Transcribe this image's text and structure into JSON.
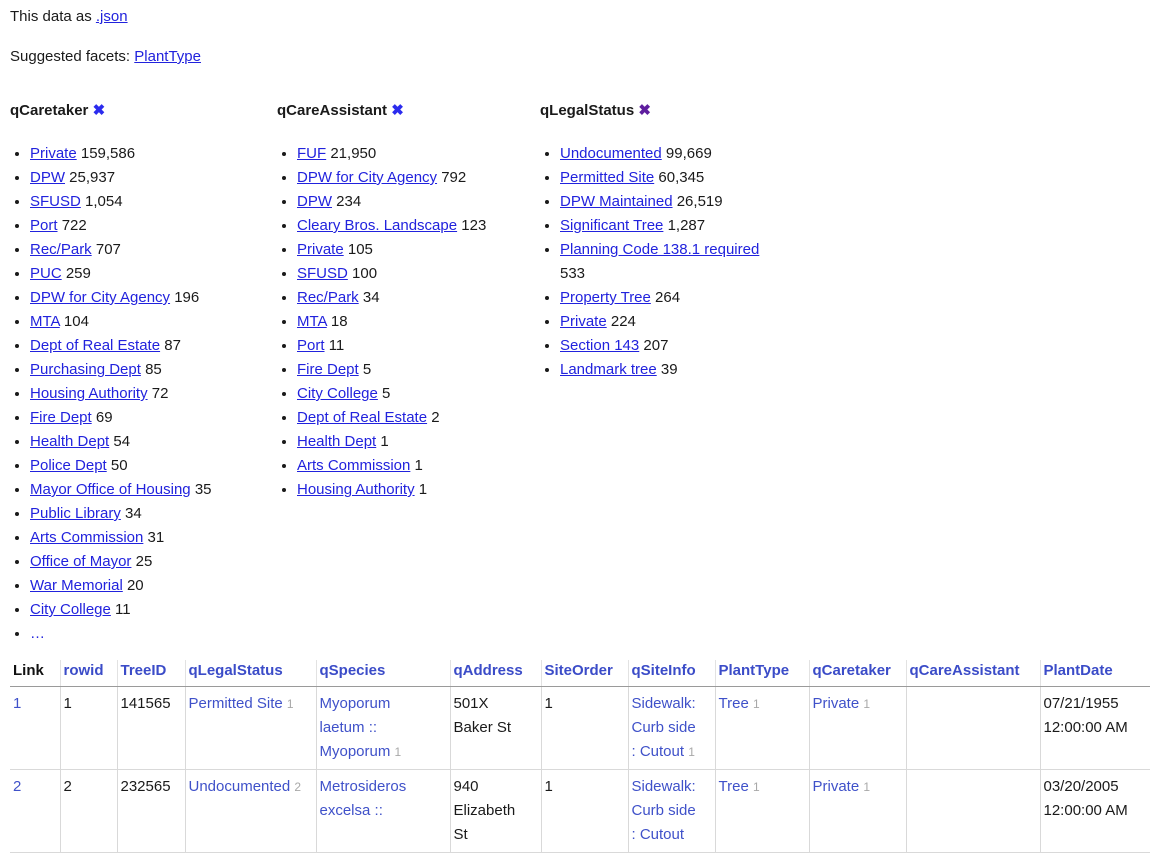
{
  "page": {
    "data_as_label": "This data as",
    "json_link_label": ".json",
    "suggested_facets_label": "Suggested facets:",
    "suggested_facets": [
      {
        "label": "PlantType"
      }
    ]
  },
  "colors": {
    "facet_link_blue": "#2122dd",
    "table_link_blue": "#3f51c9",
    "remove_x_blue": "#2b2bee",
    "remove_x_purple": "#5e1d9e",
    "count_gray": "#a8a8a8"
  },
  "facets": [
    {
      "name": "qCaretaker",
      "remove_icon": "✖",
      "more_label": "…",
      "items": [
        {
          "label": "Private",
          "count": "159,586"
        },
        {
          "label": "DPW",
          "count": "25,937"
        },
        {
          "label": "SFUSD",
          "count": "1,054"
        },
        {
          "label": "Port",
          "count": "722"
        },
        {
          "label": "Rec/Park",
          "count": "707"
        },
        {
          "label": "PUC",
          "count": "259"
        },
        {
          "label": "DPW for City Agency",
          "count": "196"
        },
        {
          "label": "MTA",
          "count": "104"
        },
        {
          "label": "Dept of Real Estate",
          "count": "87"
        },
        {
          "label": "Purchasing Dept",
          "count": "85"
        },
        {
          "label": "Housing Authority",
          "count": "72"
        },
        {
          "label": "Fire Dept",
          "count": "69"
        },
        {
          "label": "Health Dept",
          "count": "54"
        },
        {
          "label": "Police Dept",
          "count": "50"
        },
        {
          "label": "Mayor Office of Housing",
          "count": "35"
        },
        {
          "label": "Public Library",
          "count": "34"
        },
        {
          "label": "Arts Commission",
          "count": "31"
        },
        {
          "label": "Office of Mayor",
          "count": "25"
        },
        {
          "label": "War Memorial",
          "count": "20"
        },
        {
          "label": "City College",
          "count": "11"
        }
      ]
    },
    {
      "name": "qCareAssistant",
      "remove_icon": "✖",
      "more_label": "",
      "items": [
        {
          "label": "FUF",
          "count": "21,950"
        },
        {
          "label": "DPW for City Agency",
          "count": "792"
        },
        {
          "label": "DPW",
          "count": "234"
        },
        {
          "label": "Cleary Bros. Landscape",
          "count": "123"
        },
        {
          "label": "Private",
          "count": "105"
        },
        {
          "label": "SFUSD",
          "count": "100"
        },
        {
          "label": "Rec/Park",
          "count": "34"
        },
        {
          "label": "MTA",
          "count": "18"
        },
        {
          "label": "Port",
          "count": "11"
        },
        {
          "label": "Fire Dept",
          "count": "5"
        },
        {
          "label": "City College",
          "count": "5"
        },
        {
          "label": "Dept of Real Estate",
          "count": "2"
        },
        {
          "label": "Health Dept",
          "count": "1"
        },
        {
          "label": "Arts Commission",
          "count": "1"
        },
        {
          "label": "Housing Authority",
          "count": "1"
        }
      ]
    },
    {
      "name": "qLegalStatus",
      "remove_icon": "✖",
      "more_label": "",
      "items": [
        {
          "label": "Undocumented",
          "count": "99,669"
        },
        {
          "label": "Permitted Site",
          "count": "60,345"
        },
        {
          "label": "DPW Maintained",
          "count": "26,519"
        },
        {
          "label": "Significant Tree",
          "count": "1,287"
        },
        {
          "label": "Planning Code 138.1 required",
          "count": "533"
        },
        {
          "label": "Property Tree",
          "count": "264"
        },
        {
          "label": "Private",
          "count": "224"
        },
        {
          "label": "Section 143",
          "count": "207"
        },
        {
          "label": "Landmark tree",
          "count": "39"
        }
      ]
    }
  ],
  "table": {
    "columns": [
      "Link",
      "rowid",
      "TreeID",
      "qLegalStatus",
      "qSpecies",
      "qAddress",
      "SiteOrder",
      "qSiteInfo",
      "PlantType",
      "qCaretaker",
      "qCareAssistant",
      "PlantDate"
    ],
    "rows": [
      {
        "link": "1",
        "rowid": "1",
        "tree_id": "141565",
        "legal_status": "Permitted Site",
        "legal_status_count": "1",
        "species": "Myoporum laetum :: Myoporum",
        "species_count": "1",
        "address": "501X Baker St",
        "site_order": "1",
        "site_info": "Sidewalk: Curb side : Cutout",
        "site_info_count": "1",
        "plant_type": "Tree",
        "plant_type_count": "1",
        "caretaker": "Private",
        "caretaker_count": "1",
        "care_assistant": "",
        "care_assistant_count": "",
        "plant_date": "07/21/1955 12:00:00 AM"
      },
      {
        "link": "2",
        "rowid": "2",
        "tree_id": "232565",
        "legal_status": "Undocumented",
        "legal_status_count": "2",
        "species": "Metrosideros excelsa ::",
        "species_count": "",
        "address": "940 Elizabeth St",
        "site_order": "1",
        "site_info": "Sidewalk: Curb side : Cutout",
        "site_info_count": "",
        "plant_type": "Tree",
        "plant_type_count": "1",
        "caretaker": "Private",
        "caretaker_count": "1",
        "care_assistant": "",
        "care_assistant_count": "",
        "plant_date": "03/20/2005 12:00:00 AM"
      }
    ]
  }
}
